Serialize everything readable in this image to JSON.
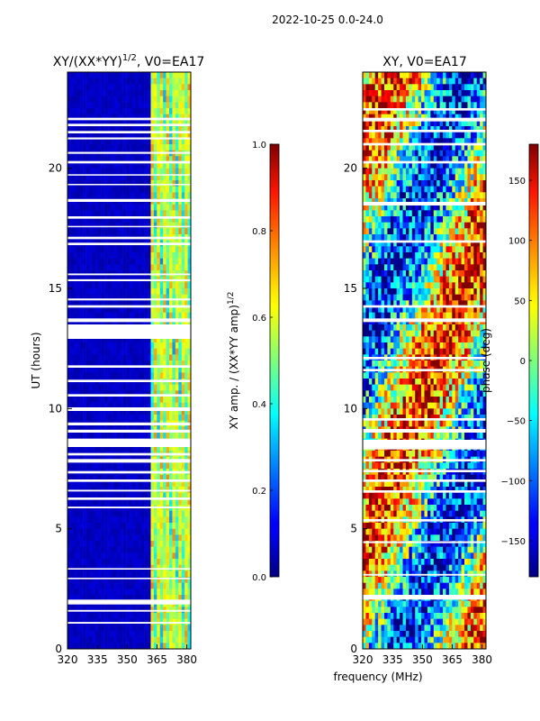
{
  "suptitle": "2022-10-25 0.0-24.0",
  "xlabel_shared": "frequency (MHz)",
  "chart_data": [
    {
      "type": "heatmap",
      "title_main": "XY/(XX*YY)",
      "title_sup": "1/2",
      "title_rest": ", V0=EA17",
      "xlabel": "frequency (MHz)",
      "ylabel": "UT (hours)",
      "xlim": [
        320,
        382
      ],
      "ylim": [
        0,
        24
      ],
      "xticks": [
        320,
        335,
        350,
        365,
        380
      ],
      "yticks": [
        0,
        5,
        10,
        15,
        20
      ],
      "colorbar": {
        "label_main": "XY amp. / (XX*YY amp)",
        "label_sup": "1/2",
        "range": [
          0.0,
          1.0
        ],
        "ticks": [
          "0.0",
          "0.2",
          "0.4",
          "0.6",
          "0.8",
          "1.0"
        ],
        "colormap": "jet"
      },
      "flagged_hours": [
        [
          1.05,
          1.12
        ],
        [
          1.55,
          1.62
        ],
        [
          1.85,
          2.05
        ],
        [
          2.9,
          2.96
        ],
        [
          3.3,
          3.36
        ],
        [
          5.85,
          5.92
        ],
        [
          6.2,
          6.3
        ],
        [
          6.55,
          6.62
        ],
        [
          6.95,
          7.05
        ],
        [
          7.3,
          7.4
        ],
        [
          7.75,
          7.9
        ],
        [
          8.05,
          8.15
        ],
        [
          8.4,
          8.75
        ],
        [
          9.0,
          9.12
        ],
        [
          9.3,
          9.42
        ],
        [
          9.9,
          10.05
        ],
        [
          10.5,
          10.6
        ],
        [
          11.1,
          11.2
        ],
        [
          11.7,
          11.8
        ],
        [
          12.9,
          13.5
        ],
        [
          13.6,
          13.75
        ],
        [
          14.2,
          14.3
        ],
        [
          14.5,
          14.58
        ],
        [
          15.3,
          15.38
        ],
        [
          15.55,
          15.62
        ],
        [
          16.8,
          16.9
        ],
        [
          17.05,
          17.15
        ],
        [
          17.55,
          17.6
        ],
        [
          17.9,
          18.0
        ],
        [
          18.6,
          18.72
        ],
        [
          19.3,
          19.35
        ],
        [
          19.7,
          19.75
        ],
        [
          20.2,
          20.3
        ],
        [
          20.6,
          20.68
        ],
        [
          21.2,
          21.28
        ],
        [
          21.45,
          21.55
        ],
        [
          21.75,
          21.85
        ],
        [
          22.0,
          22.1
        ]
      ],
      "amp_profile": [
        {
          "freq_range": [
            320,
            362
          ],
          "value": 0.05
        },
        {
          "freq_range": [
            362,
            382
          ],
          "value": 0.45
        }
      ]
    },
    {
      "type": "heatmap",
      "title_main": "XY, V0=EA17",
      "xlabel": "frequency (MHz)",
      "ylabel": "",
      "xlim": [
        320,
        382
      ],
      "ylim": [
        0,
        24
      ],
      "xticks": [
        320,
        335,
        350,
        365,
        380
      ],
      "yticks": [
        0,
        5,
        10,
        15,
        20
      ],
      "colorbar": {
        "label_main": "phase (deg)",
        "range": [
          -180,
          180
        ],
        "ticks": [
          "−150",
          "−100",
          "−50",
          "0",
          "50",
          "100",
          "150"
        ],
        "tick_values": [
          -150,
          -100,
          -50,
          0,
          50,
          100,
          150
        ],
        "colormap": "jet"
      },
      "flagged_hours": [
        [
          2.05,
          2.25
        ],
        [
          3.05,
          3.12
        ],
        [
          4.4,
          4.48
        ],
        [
          5.3,
          5.4
        ],
        [
          6.5,
          6.6
        ],
        [
          6.95,
          7.05
        ],
        [
          7.35,
          7.45
        ],
        [
          7.8,
          7.9
        ],
        [
          8.3,
          8.7
        ],
        [
          9.0,
          9.15
        ],
        [
          9.5,
          9.6
        ],
        [
          11.55,
          11.65
        ],
        [
          12.05,
          12.15
        ],
        [
          13.6,
          13.75
        ],
        [
          14.2,
          14.3
        ],
        [
          16.9,
          17.0
        ],
        [
          18.45,
          18.6
        ],
        [
          20.2,
          20.3
        ],
        [
          20.95,
          21.05
        ],
        [
          21.5,
          21.6
        ],
        [
          21.95,
          22.1
        ],
        [
          22.4,
          22.5
        ]
      ]
    }
  ]
}
